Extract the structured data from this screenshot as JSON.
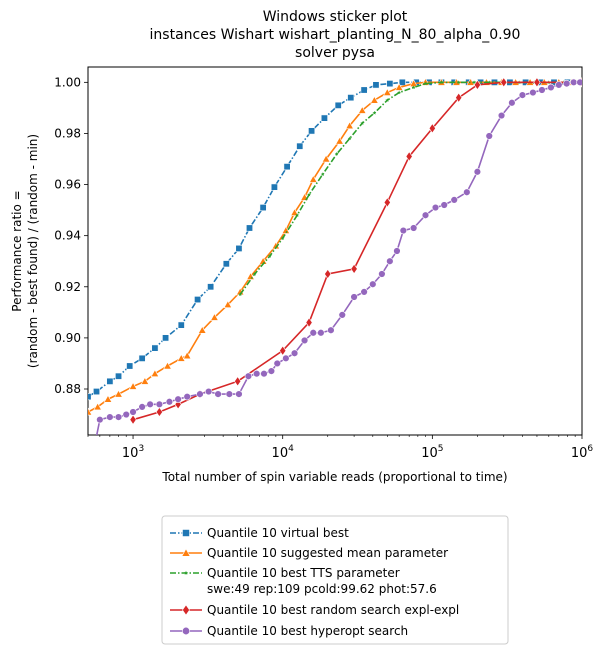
{
  "chart_data": {
    "type": "line",
    "title": [
      "Windows sticker plot",
      "instances Wishart wishart_planting_N_80_alpha_0.90",
      "solver pysa"
    ],
    "xlabel": "Total number of spin variable reads (proportional to time)",
    "ylabel": [
      "Performance ratio =",
      "(random - best found) / (random - min)"
    ],
    "xscale": "log",
    "xlim": [
      500,
      1000000
    ],
    "ylim": [
      0.862,
      1.006
    ],
    "x_ticks": [
      {
        "value": 1000,
        "base": "10",
        "exp": "3"
      },
      {
        "value": 10000,
        "base": "10",
        "exp": "4"
      },
      {
        "value": 100000,
        "base": "10",
        "exp": "5"
      },
      {
        "value": 1000000,
        "base": "10",
        "exp": "6"
      }
    ],
    "y_ticks": [
      {
        "value": 0.88,
        "label": "0.88"
      },
      {
        "value": 0.9,
        "label": "0.90"
      },
      {
        "value": 0.92,
        "label": "0.92"
      },
      {
        "value": 0.94,
        "label": "0.94"
      },
      {
        "value": 0.96,
        "label": "0.96"
      },
      {
        "value": 0.98,
        "label": "0.98"
      },
      {
        "value": 1.0,
        "label": "1.00"
      }
    ],
    "legend": "below",
    "series": [
      {
        "name": "Quantile 10 virtual best",
        "color": "#1f77b4",
        "marker": "square",
        "dash": "dashdot",
        "points": [
          [
            500,
            0.877
          ],
          [
            570,
            0.879
          ],
          [
            700,
            0.883
          ],
          [
            800,
            0.885
          ],
          [
            950,
            0.889
          ],
          [
            1150,
            0.892
          ],
          [
            1400,
            0.896
          ],
          [
            1650,
            0.9
          ],
          [
            2100,
            0.905
          ],
          [
            2700,
            0.915
          ],
          [
            3300,
            0.92
          ],
          [
            4200,
            0.929
          ],
          [
            5100,
            0.935
          ],
          [
            6000,
            0.943
          ],
          [
            7400,
            0.951
          ],
          [
            8800,
            0.959
          ],
          [
            10700,
            0.967
          ],
          [
            13000,
            0.975
          ],
          [
            15600,
            0.981
          ],
          [
            19000,
            0.986
          ],
          [
            23500,
            0.991
          ],
          [
            28500,
            0.994
          ],
          [
            35000,
            0.997
          ],
          [
            42000,
            0.999
          ],
          [
            52000,
            0.9995
          ],
          [
            63000,
            1.0
          ],
          [
            78000,
            1.0
          ],
          [
            95000,
            1.0
          ],
          [
            115000,
            1.0
          ],
          [
            140000,
            1.0
          ],
          [
            175000,
            1.0
          ],
          [
            210000,
            1.0
          ],
          [
            260000,
            1.0
          ],
          [
            330000,
            1.0
          ],
          [
            420000,
            1.0
          ],
          [
            530000,
            1.0
          ],
          [
            650000,
            1.0
          ],
          [
            800000,
            1.0
          ],
          [
            1000000,
            1.0
          ]
        ]
      },
      {
        "name": "Quantile 10 suggested mean parameter",
        "color": "#ff7f0e",
        "marker": "triangle",
        "dash": "solid",
        "points": [
          [
            500,
            0.871
          ],
          [
            580,
            0.873
          ],
          [
            680,
            0.876
          ],
          [
            800,
            0.878
          ],
          [
            1000,
            0.881
          ],
          [
            1200,
            0.883
          ],
          [
            1400,
            0.886
          ],
          [
            1700,
            0.889
          ],
          [
            2100,
            0.892
          ],
          [
            2300,
            0.893
          ],
          [
            2900,
            0.903
          ],
          [
            3500,
            0.908
          ],
          [
            4300,
            0.913
          ],
          [
            5200,
            0.918
          ],
          [
            6100,
            0.924
          ],
          [
            7400,
            0.93
          ],
          [
            9000,
            0.936
          ],
          [
            10500,
            0.942
          ],
          [
            12000,
            0.949
          ],
          [
            14000,
            0.955
          ],
          [
            16000,
            0.962
          ],
          [
            19500,
            0.97
          ],
          [
            24000,
            0.977
          ],
          [
            28000,
            0.983
          ],
          [
            34000,
            0.989
          ],
          [
            41000,
            0.993
          ],
          [
            50000,
            0.996
          ],
          [
            60000,
            0.998
          ],
          [
            75000,
            0.9995
          ],
          [
            90000,
            1.0
          ],
          [
            115000,
            1.0
          ],
          [
            145000,
            1.0
          ],
          [
            180000,
            1.0
          ],
          [
            230000,
            1.0
          ],
          [
            290000,
            1.0
          ],
          [
            360000,
            1.0
          ],
          [
            450000,
            1.0
          ],
          [
            560000,
            1.0
          ],
          [
            700000,
            1.0
          ],
          [
            850000,
            1.0
          ],
          [
            1000000,
            1.0
          ]
        ]
      },
      {
        "name": "Quantile 10 best TTS parameter",
        "name2": "swe:49 rep:109 pcold:99.62 phot:57.6",
        "color": "#2ca02c",
        "marker": "star",
        "dash": "dashdot",
        "points": [
          [
            5200,
            0.917
          ],
          [
            6500,
            0.925
          ],
          [
            8200,
            0.932
          ],
          [
            10000,
            0.939
          ],
          [
            12500,
            0.948
          ],
          [
            15000,
            0.956
          ],
          [
            18500,
            0.964
          ],
          [
            23000,
            0.972
          ],
          [
            28000,
            0.978
          ],
          [
            34000,
            0.984
          ],
          [
            41000,
            0.988
          ],
          [
            50000,
            0.993
          ],
          [
            60000,
            0.996
          ],
          [
            75000,
            0.998
          ],
          [
            90000,
            0.9995
          ],
          [
            115000,
            1.0
          ],
          [
            150000,
            1.0
          ],
          [
            190000,
            1.0
          ],
          [
            240000,
            1.0
          ],
          [
            300000,
            1.0
          ],
          [
            380000,
            1.0
          ],
          [
            480000,
            1.0
          ],
          [
            600000,
            1.0
          ],
          [
            750000,
            1.0
          ],
          [
            900000,
            1.0
          ],
          [
            1000000,
            1.0
          ]
        ]
      },
      {
        "name": "Quantile 10  best random search expl-expl",
        "color": "#d62728",
        "marker": "diamond",
        "dash": "solid",
        "points": [
          [
            1000,
            0.868
          ],
          [
            1500,
            0.871
          ],
          [
            2000,
            0.874
          ],
          [
            2800,
            0.878
          ],
          [
            5000,
            0.883
          ],
          [
            10000,
            0.895
          ],
          [
            15000,
            0.906
          ],
          [
            20000,
            0.925
          ],
          [
            30000,
            0.927
          ],
          [
            50000,
            0.953
          ],
          [
            70000,
            0.971
          ],
          [
            100000,
            0.982
          ],
          [
            150000,
            0.994
          ],
          [
            200000,
            0.999
          ],
          [
            300000,
            1.0
          ],
          [
            500000,
            1.0
          ],
          [
            1000000,
            1.0
          ]
        ]
      },
      {
        "name": "Quantile 10 best hyperopt search",
        "color": "#9467bd",
        "marker": "circle",
        "dash": "solid",
        "points": [
          [
            500,
            0.855
          ],
          [
            550,
            0.857
          ],
          [
            600,
            0.868
          ],
          [
            700,
            0.869
          ],
          [
            800,
            0.869
          ],
          [
            900,
            0.87
          ],
          [
            1000,
            0.871
          ],
          [
            1150,
            0.873
          ],
          [
            1300,
            0.874
          ],
          [
            1500,
            0.874
          ],
          [
            1750,
            0.875
          ],
          [
            2000,
            0.876
          ],
          [
            2300,
            0.877
          ],
          [
            2800,
            0.878
          ],
          [
            3200,
            0.879
          ],
          [
            3700,
            0.878
          ],
          [
            4400,
            0.878
          ],
          [
            5100,
            0.878
          ],
          [
            5900,
            0.885
          ],
          [
            6700,
            0.886
          ],
          [
            7500,
            0.886
          ],
          [
            8400,
            0.887
          ],
          [
            9200,
            0.89
          ],
          [
            10500,
            0.892
          ],
          [
            12000,
            0.894
          ],
          [
            14000,
            0.899
          ],
          [
            16000,
            0.902
          ],
          [
            18000,
            0.902
          ],
          [
            21000,
            0.903
          ],
          [
            25000,
            0.909
          ],
          [
            30000,
            0.916
          ],
          [
            35000,
            0.918
          ],
          [
            40000,
            0.921
          ],
          [
            46000,
            0.925
          ],
          [
            52000,
            0.93
          ],
          [
            58000,
            0.934
          ],
          [
            64000,
            0.942
          ],
          [
            75000,
            0.943
          ],
          [
            90000,
            0.948
          ],
          [
            105000,
            0.951
          ],
          [
            120000,
            0.952
          ],
          [
            140000,
            0.954
          ],
          [
            170000,
            0.957
          ],
          [
            200000,
            0.965
          ],
          [
            240000,
            0.979
          ],
          [
            290000,
            0.987
          ],
          [
            340000,
            0.992
          ],
          [
            400000,
            0.995
          ],
          [
            470000,
            0.996
          ],
          [
            540000,
            0.997
          ],
          [
            620000,
            0.998
          ],
          [
            700000,
            0.999
          ],
          [
            790000,
            0.9995
          ],
          [
            880000,
            1.0
          ],
          [
            970000,
            1.0
          ]
        ]
      }
    ]
  }
}
